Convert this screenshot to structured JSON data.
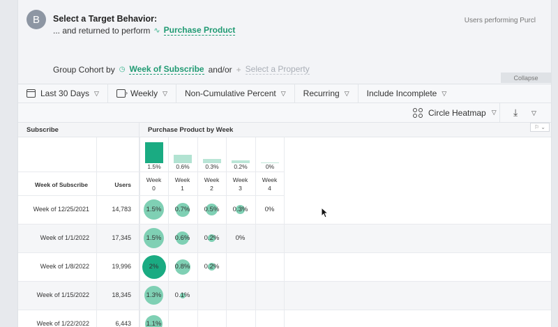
{
  "target": {
    "badge": "B",
    "title": "Select a Target Behavior:",
    "prefix": "... and returned to perform",
    "event_link": "Purchase Product",
    "right_caption": "Users performing Purcl"
  },
  "group": {
    "label": "Group Cohort by",
    "property": "Week of Subscribe",
    "and_or": "and/or",
    "placeholder": "Select a Property"
  },
  "collapse_label": "Collapse",
  "toolbar": {
    "date_range": "Last 30 Days",
    "interval": "Weekly",
    "mode": "Non-Cumulative Percent",
    "recurring": "Recurring",
    "incomplete": "Include Incomplete",
    "chart_type": "Circle Heatmap"
  },
  "table": {
    "left_header": "Subscribe",
    "right_header": "Purchase Product by Week",
    "col_cohort": "Week of Subscribe",
    "col_users": "Users",
    "week_prefix": "Week",
    "summary_labels": [
      "1.5%",
      "0.6%",
      "0.3%",
      "0.2%",
      "0%"
    ],
    "weeks": [
      "0",
      "1",
      "2",
      "3",
      "4"
    ],
    "rows": [
      {
        "cohort": "Week of 12/25/2021",
        "users": "14,783",
        "values": [
          "1.5%",
          "0.7%",
          "0.5%",
          "0.3%",
          "0%"
        ]
      },
      {
        "cohort": "Week of 1/1/2022",
        "users": "17,345",
        "values": [
          "1.5%",
          "0.6%",
          "0.2%",
          "0%"
        ]
      },
      {
        "cohort": "Week of 1/8/2022",
        "users": "19,996",
        "values": [
          "2%",
          "0.8%",
          "0.2%"
        ]
      },
      {
        "cohort": "Week of 1/15/2022",
        "users": "18,345",
        "values": [
          "1.3%",
          "0.1%"
        ]
      },
      {
        "cohort": "Week of 1/22/2022",
        "users": "6,443",
        "values": [
          "1.1%"
        ]
      }
    ]
  },
  "colors": {
    "accent": "#1aab82",
    "circle": "#7fd0b4",
    "link": "#1f9a72"
  }
}
